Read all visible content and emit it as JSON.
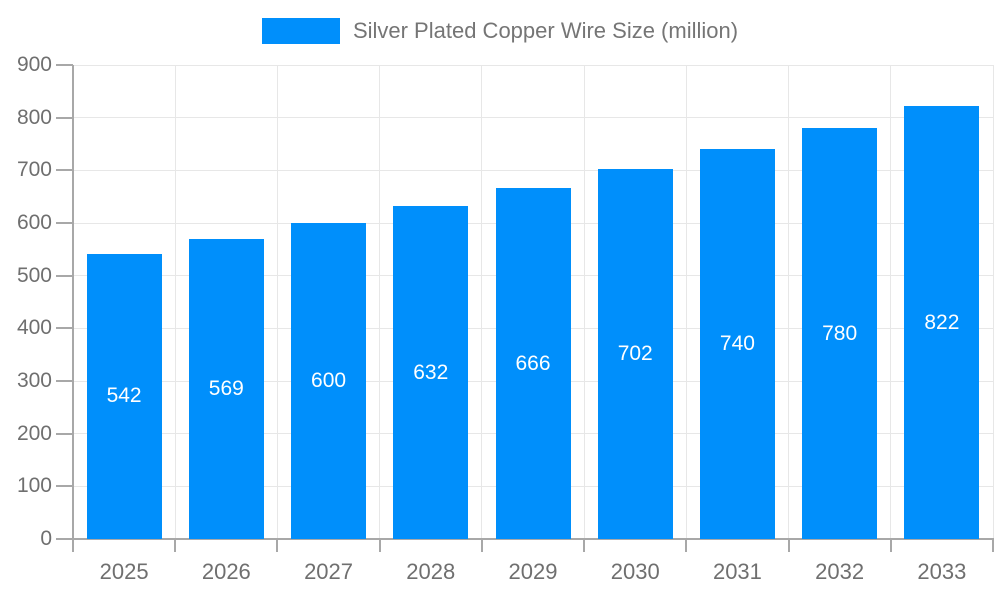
{
  "chart_data": {
    "type": "bar",
    "title": "Silver Plated Copper Wire Size (million)",
    "categories": [
      "2025",
      "2026",
      "2027",
      "2028",
      "2029",
      "2030",
      "2031",
      "2032",
      "2033"
    ],
    "series": [
      {
        "name": "Silver Plated Copper Wire Size (million)",
        "values": [
          542,
          569,
          600,
          632,
          666,
          702,
          740,
          780,
          822
        ]
      }
    ],
    "value_labels": [
      "542",
      "569",
      "600",
      "632",
      "666",
      "702",
      "740",
      "780",
      "822"
    ],
    "ylim": [
      0,
      900
    ],
    "ytick_step": 100,
    "ytick_labels": [
      "0",
      "100",
      "200",
      "300",
      "400",
      "500",
      "600",
      "700",
      "800",
      "900"
    ],
    "xlabel": "",
    "ylabel": "",
    "grid": "both",
    "legend_position": "top-center",
    "colors": {
      "bar": "#008FFB",
      "value_label": "#ffffff",
      "axis_label": "#6f6f6f",
      "legend_text": "#757575",
      "gridline": "#e7e7e7",
      "axis_line": "#a8a8a8"
    }
  }
}
